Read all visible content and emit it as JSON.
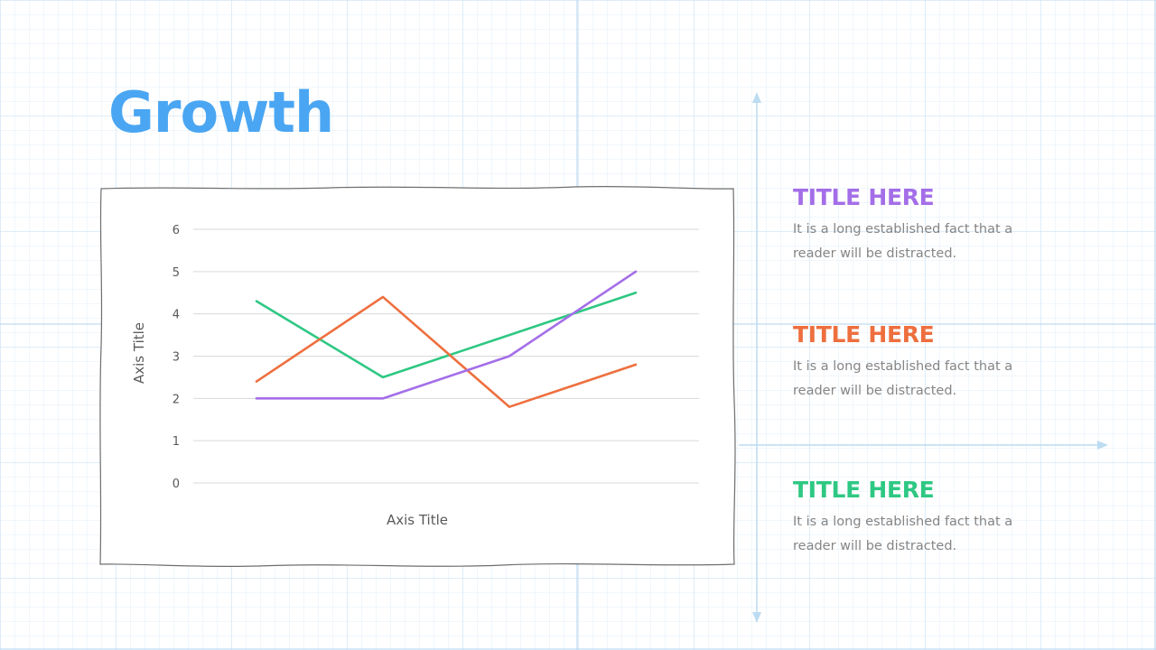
{
  "slide": {
    "title": "Growth"
  },
  "colors": {
    "title": "#4aa6f2",
    "purple": "#a46ee8",
    "orange": "#ee6f3e",
    "green": "#2ec883",
    "arrow": "#bcdcf2",
    "gridline": "#d9d9d9",
    "frame": "#6e6e6e"
  },
  "chart_data": {
    "type": "line",
    "categories": [
      "",
      "",
      "",
      ""
    ],
    "series": [
      {
        "values": [
          4.3,
          2.5,
          3.5,
          4.5
        ],
        "color": "#2ec883"
      },
      {
        "values": [
          2.4,
          4.4,
          1.8,
          2.8
        ],
        "color": "#ee6f3e"
      },
      {
        "values": [
          2.0,
          2.0,
          3.0,
          5.0
        ],
        "color": "#a46ee8"
      }
    ],
    "yticks": [
      "0",
      "1",
      "2",
      "3",
      "4",
      "5",
      "6"
    ],
    "ylim": [
      0,
      6
    ],
    "xlabel": "Axis Title",
    "ylabel": "Axis Title",
    "grid": true,
    "legend": "none"
  },
  "info_items": [
    {
      "title": "TITLE HERE",
      "text": "It is a long established fact that a reader will be distracted.",
      "color": "#a46ee8"
    },
    {
      "title": "TITLE HERE",
      "text": "It is a long established fact that a reader will be distracted.",
      "color": "#ee6f3e"
    },
    {
      "title": "TITLE HERE",
      "text": "It is a long established fact that a reader will be distracted.",
      "color": "#2ec883"
    }
  ]
}
